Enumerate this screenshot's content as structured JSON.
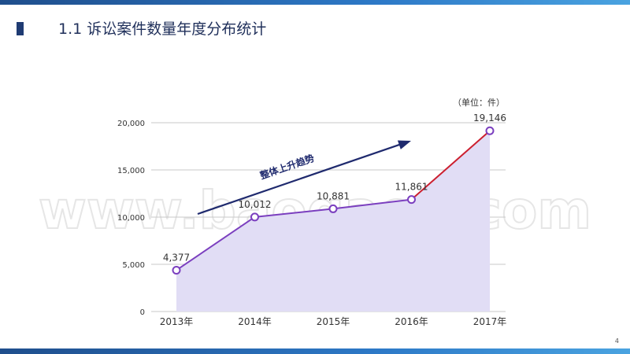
{
  "slide": {
    "title": "1.1 诉讼案件数量年度分布统计",
    "page_number": "4",
    "watermark": "www.baogao8.com"
  },
  "chart_data": {
    "type": "area",
    "categories": [
      "2013年",
      "2014年",
      "2015年",
      "2016年",
      "2017年"
    ],
    "values": [
      4377,
      10012,
      10881,
      11861,
      19146
    ],
    "value_labels": [
      "4,377",
      "10,012",
      "10,881",
      "11,861",
      "19,146"
    ],
    "y_ticks": [
      0,
      5000,
      10000,
      15000,
      20000
    ],
    "y_tick_labels": [
      "0",
      "5,000",
      "10,000",
      "15,000",
      "20,000"
    ],
    "ylim": [
      0,
      20000
    ],
    "unit_label": "（单位：件）",
    "trend_annotation": "整体上升趋势",
    "grid": true,
    "colors": {
      "area_fill": "#e1ddf5",
      "line": "#7b3fbf",
      "highlight_line": "#cc1f2f",
      "marker_fill": "#ffffff",
      "trend_arrow": "#1f2a6e",
      "grid": "#c8c8c8"
    }
  }
}
